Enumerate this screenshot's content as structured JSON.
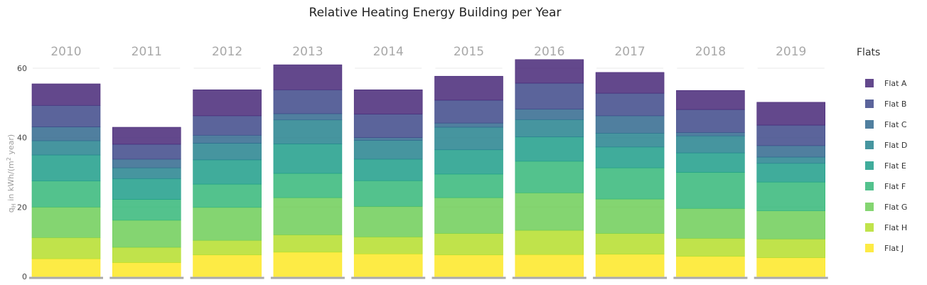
{
  "chart_data": {
    "type": "bar",
    "stacked": true,
    "faceted": true,
    "title": "Relative Heating Energy Building per Year",
    "ylabel_main": "q",
    "ylabel_sub": "H",
    "ylabel_rest": " in kWh/(m",
    "ylabel_sup": "2",
    "ylabel_end": " year)",
    "ylim": [
      0,
      60
    ],
    "yticks": [
      0,
      20,
      40,
      60
    ],
    "grid": true,
    "legend_title": "Flats",
    "legend_position": "right",
    "panels": [
      "2010",
      "2011",
      "2012",
      "2013",
      "2014",
      "2015",
      "2016",
      "2017",
      "2018",
      "2019"
    ],
    "series": [
      {
        "name": "Flat J",
        "color": "#fde725",
        "values": [
          5.1,
          4.0,
          6.2,
          7.0,
          6.5,
          6.2,
          6.3,
          6.4,
          5.8,
          5.4
        ]
      },
      {
        "name": "Flat H",
        "color": "#b5de2b",
        "values": [
          6.1,
          4.4,
          4.2,
          5.0,
          4.9,
          6.2,
          7.0,
          6.0,
          5.2,
          5.4
        ]
      },
      {
        "name": "Flat G",
        "color": "#6ece58",
        "values": [
          8.8,
          7.8,
          9.5,
          10.7,
          8.8,
          10.3,
          10.8,
          9.9,
          8.6,
          8.1
        ]
      },
      {
        "name": "Flat F",
        "color": "#35b779",
        "values": [
          7.5,
          6.0,
          6.7,
          7.0,
          7.4,
          6.8,
          9.1,
          9.0,
          10.4,
          8.3
        ]
      },
      {
        "name": "Flat E",
        "color": "#1f9e89",
        "values": [
          7.5,
          6.0,
          7.0,
          8.5,
          6.2,
          7.0,
          7.0,
          6.0,
          5.6,
          5.4
        ]
      },
      {
        "name": "Flat D",
        "color": "#26828e",
        "values": [
          4.1,
          3.1,
          4.8,
          6.9,
          5.4,
          6.5,
          5.0,
          4.0,
          4.9,
          1.8
        ]
      },
      {
        "name": "Flat C",
        "color": "#31688e",
        "values": [
          4.0,
          2.5,
          2.3,
          1.8,
          0.8,
          1.2,
          3.0,
          5.0,
          1.0,
          3.3
        ]
      },
      {
        "name": "Flat B",
        "color": "#3e4989",
        "values": [
          6.2,
          4.3,
          5.6,
          6.9,
          6.8,
          6.6,
          7.5,
          6.5,
          6.6,
          5.9
        ]
      },
      {
        "name": "Flat A",
        "color": "#482878",
        "values": [
          6.2,
          4.9,
          7.5,
          7.2,
          7.0,
          6.9,
          6.8,
          6.0,
          5.5,
          6.6
        ]
      }
    ]
  }
}
